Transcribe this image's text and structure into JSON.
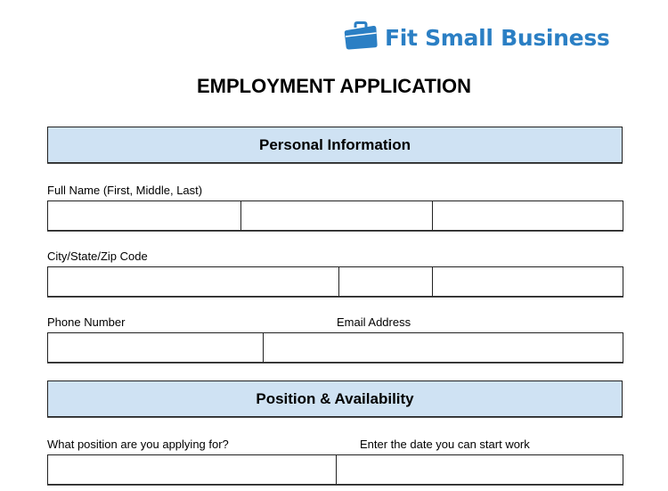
{
  "header": {
    "brand": "Fit Small Business",
    "brand_color": "#2b7fc4",
    "logo_icon": "briefcase-icon",
    "title": "EMPLOYMENT APPLICATION"
  },
  "sections": {
    "personal": {
      "title": "Personal Information",
      "full_name_label": "Full Name (First, Middle, Last)",
      "city_label": "City/State/Zip Code",
      "phone_label": "Phone Number",
      "email_label": "Email Address"
    },
    "position": {
      "title": "Position & Availability",
      "position_label": "What position are you applying for?",
      "start_date_label": "Enter the date you can start work"
    }
  },
  "fields": {
    "first_name": "",
    "middle_name": "",
    "last_name": "",
    "city": "",
    "state": "",
    "zip": "",
    "phone": "",
    "email": "",
    "position": "",
    "start_date": ""
  },
  "colors": {
    "section_fill": "#cfe2f3",
    "border": "#222222"
  }
}
